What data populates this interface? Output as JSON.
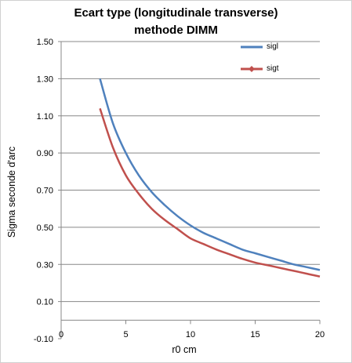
{
  "chart_data": {
    "type": "line",
    "title_lines": [
      "Ecart type (longitudinale transverse)",
      "methode DIMM"
    ],
    "xlabel": "r0 cm",
    "ylabel": "Sigma seconde d'arc",
    "xlim": [
      0,
      20
    ],
    "ylim": [
      -0.1,
      1.5
    ],
    "x_ticks": [
      0,
      5,
      10,
      15,
      20
    ],
    "y_ticks": [
      -0.1,
      0.1,
      0.3,
      0.5,
      0.7,
      0.9,
      1.1,
      1.3,
      1.5
    ],
    "y_tick_labels": [
      "-0.10",
      "0.10",
      "0.30",
      "0.50",
      "0.70",
      "0.90",
      "1.10",
      "1.30",
      "1.50"
    ],
    "grid": "horizontal",
    "legend_position": "top-right",
    "x": [
      3,
      4,
      5,
      6,
      7,
      8,
      9,
      10,
      11,
      12,
      13,
      14,
      15,
      16,
      17,
      18,
      19,
      20
    ],
    "series": [
      {
        "name": "sigl",
        "color": "#4f81bd",
        "marker": "none",
        "values": [
          1.3,
          1.06,
          0.9,
          0.78,
          0.69,
          0.62,
          0.56,
          0.51,
          0.47,
          0.44,
          0.41,
          0.38,
          0.36,
          0.34,
          0.32,
          0.3,
          0.285,
          0.27
        ]
      },
      {
        "name": "sigt",
        "color": "#c0504d",
        "marker": "diamond",
        "values": [
          1.14,
          0.93,
          0.78,
          0.68,
          0.6,
          0.54,
          0.49,
          0.44,
          0.41,
          0.38,
          0.355,
          0.33,
          0.31,
          0.295,
          0.28,
          0.265,
          0.25,
          0.235
        ]
      }
    ]
  }
}
